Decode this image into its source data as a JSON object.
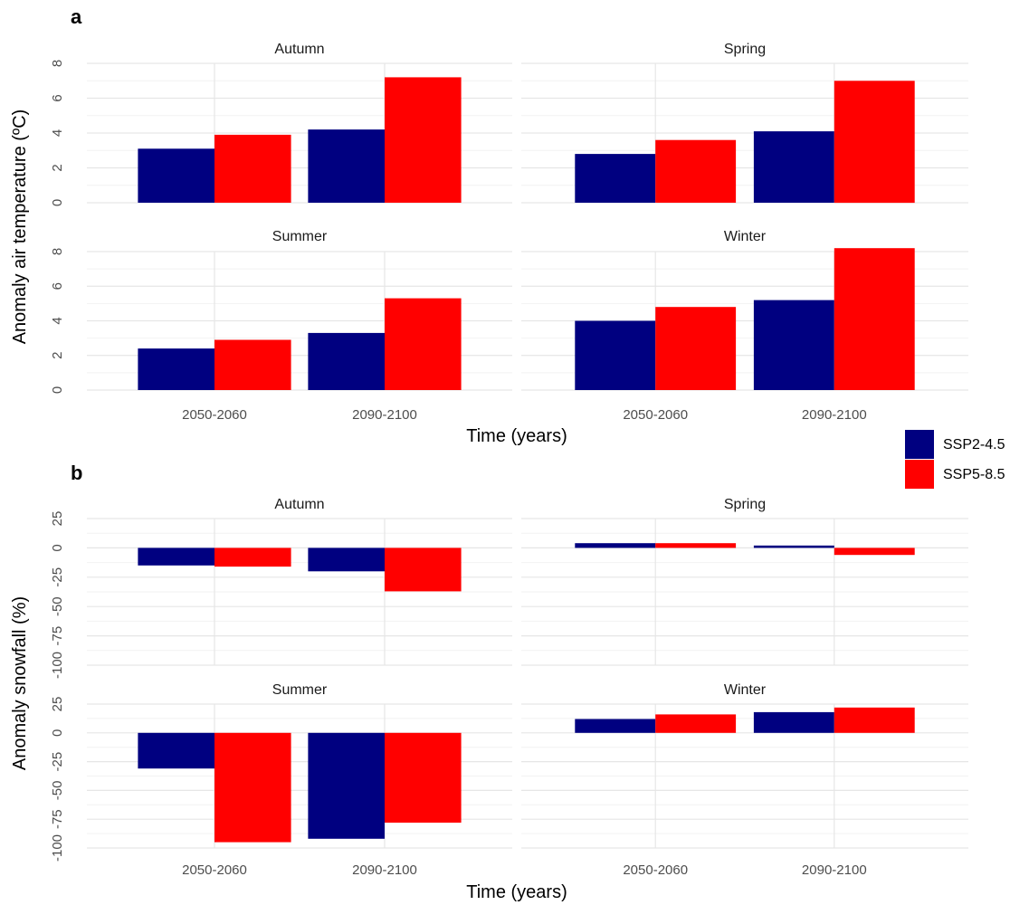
{
  "colors": {
    "SSP2-4.5": "#000080",
    "SSP5-8.5": "#ff0000",
    "grid_major": "#e6e6e6",
    "grid_minor": "#f2f2f2"
  },
  "legend": {
    "placement": "right",
    "items": [
      "SSP2-4.5",
      "SSP5-8.5"
    ]
  },
  "chart_data": [
    {
      "type": "bar",
      "panel_label": "a",
      "categories": [
        "2050-2060",
        "2090-2100"
      ],
      "xlabel": "Time (years)",
      "ylabel": "Anomaly air temperature (ºC)",
      "ylim": [
        0,
        8
      ],
      "yticks": [
        0,
        2,
        4,
        6,
        8
      ],
      "yticklabels": [
        "0",
        "2",
        "4",
        "6",
        "8"
      ],
      "grid": true,
      "facets": [
        {
          "title": "Autumn",
          "series": [
            {
              "name": "SSP2-4.5",
              "values": [
                3.1,
                4.2
              ]
            },
            {
              "name": "SSP5-8.5",
              "values": [
                3.9,
                7.2
              ]
            }
          ]
        },
        {
          "title": "Spring",
          "series": [
            {
              "name": "SSP2-4.5",
              "values": [
                2.8,
                4.1
              ]
            },
            {
              "name": "SSP5-8.5",
              "values": [
                3.6,
                7.0
              ]
            }
          ]
        },
        {
          "title": "Summer",
          "series": [
            {
              "name": "SSP2-4.5",
              "values": [
                2.4,
                3.3
              ]
            },
            {
              "name": "SSP5-8.5",
              "values": [
                2.9,
                5.3
              ]
            }
          ]
        },
        {
          "title": "Winter",
          "series": [
            {
              "name": "SSP2-4.5",
              "values": [
                4.0,
                5.2
              ]
            },
            {
              "name": "SSP5-8.5",
              "values": [
                4.8,
                8.2
              ]
            }
          ]
        }
      ]
    },
    {
      "type": "bar",
      "panel_label": "b",
      "categories": [
        "2050-2060",
        "2090-2100"
      ],
      "xlabel": "Time (years)",
      "ylabel": "Anomaly snowfall (%)",
      "ylim": [
        -100,
        25
      ],
      "yticks": [
        -100,
        -75,
        -50,
        -25,
        0,
        25
      ],
      "yticklabels": [
        "-100",
        "-75",
        "-50",
        "-25",
        "0",
        "25"
      ],
      "grid": true,
      "facets": [
        {
          "title": "Autumn",
          "series": [
            {
              "name": "SSP2-4.5",
              "values": [
                -15,
                -20
              ]
            },
            {
              "name": "SSP5-8.5",
              "values": [
                -16,
                -37
              ]
            }
          ]
        },
        {
          "title": "Spring",
          "series": [
            {
              "name": "SSP2-4.5",
              "values": [
                4,
                2
              ]
            },
            {
              "name": "SSP5-8.5",
              "values": [
                4,
                -6
              ]
            }
          ]
        },
        {
          "title": "Summer",
          "series": [
            {
              "name": "SSP2-4.5",
              "values": [
                -31,
                -92
              ]
            },
            {
              "name": "SSP5-8.5",
              "values": [
                -95,
                -78
              ]
            }
          ]
        },
        {
          "title": "Winter",
          "series": [
            {
              "name": "SSP2-4.5",
              "values": [
                12,
                18
              ]
            },
            {
              "name": "SSP5-8.5",
              "values": [
                16,
                22
              ]
            }
          ]
        }
      ]
    }
  ]
}
